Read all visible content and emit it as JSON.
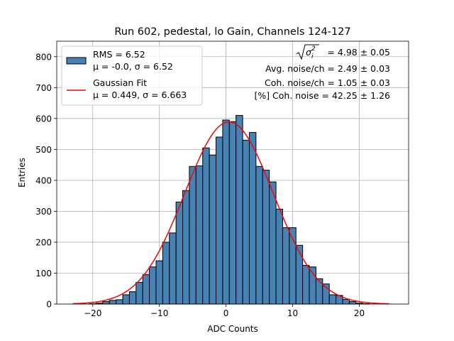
{
  "chart_data": {
    "type": "bar",
    "title": "Run 602, pedestal, lo Gain, Channels 124-127",
    "xlabel": "ADC Counts",
    "ylabel": "Entries",
    "xlim": [
      -25.4,
      27.4
    ],
    "ylim": [
      0,
      850
    ],
    "grid": true,
    "legend_position": "top-left",
    "bin_width": 1,
    "bins": [
      {
        "x": -24,
        "y": 0
      },
      {
        "x": -23,
        "y": 0
      },
      {
        "x": -22,
        "y": 0
      },
      {
        "x": -21,
        "y": 0
      },
      {
        "x": -20,
        "y": 1
      },
      {
        "x": -19,
        "y": 3
      },
      {
        "x": -18,
        "y": 8
      },
      {
        "x": -17,
        "y": 12
      },
      {
        "x": -16,
        "y": 14
      },
      {
        "x": -15,
        "y": 30
      },
      {
        "x": -14,
        "y": 40
      },
      {
        "x": -13,
        "y": 70
      },
      {
        "x": -12,
        "y": 95
      },
      {
        "x": -11,
        "y": 120
      },
      {
        "x": -10,
        "y": 140
      },
      {
        "x": -9,
        "y": 200
      },
      {
        "x": -8,
        "y": 230
      },
      {
        "x": -7,
        "y": 330
      },
      {
        "x": -6,
        "y": 367
      },
      {
        "x": -5,
        "y": 445
      },
      {
        "x": -4,
        "y": 447
      },
      {
        "x": -3,
        "y": 505
      },
      {
        "x": -2,
        "y": 482
      },
      {
        "x": -1,
        "y": 540
      },
      {
        "x": 0,
        "y": 595
      },
      {
        "x": 1,
        "y": 590
      },
      {
        "x": 2,
        "y": 610
      },
      {
        "x": 3,
        "y": 530
      },
      {
        "x": 4,
        "y": 555
      },
      {
        "x": 5,
        "y": 445
      },
      {
        "x": 6,
        "y": 433
      },
      {
        "x": 7,
        "y": 395
      },
      {
        "x": 8,
        "y": 307
      },
      {
        "x": 9,
        "y": 247
      },
      {
        "x": 10,
        "y": 247
      },
      {
        "x": 11,
        "y": 190
      },
      {
        "x": 12,
        "y": 125
      },
      {
        "x": 13,
        "y": 120
      },
      {
        "x": 14,
        "y": 82
      },
      {
        "x": 15,
        "y": 65
      },
      {
        "x": 16,
        "y": 30
      },
      {
        "x": 17,
        "y": 28
      },
      {
        "x": 18,
        "y": 15
      },
      {
        "x": 19,
        "y": 8
      },
      {
        "x": 20,
        "y": 3
      },
      {
        "x": 21,
        "y": 1
      },
      {
        "x": 22,
        "y": 0
      },
      {
        "x": 23,
        "y": 0
      }
    ],
    "fit": {
      "type": "gaussian",
      "amplitude": 589,
      "mu": 0.449,
      "sigma": 6.663,
      "x_range": [
        -23,
        24.5
      ]
    },
    "x_ticks": [
      -20,
      -10,
      0,
      10,
      20
    ],
    "x_tick_labels": [
      "−20",
      "−10",
      "0",
      "10",
      "20"
    ],
    "y_ticks": [
      0,
      100,
      200,
      300,
      400,
      500,
      600,
      700,
      800
    ],
    "y_tick_labels": [
      "0",
      "100",
      "200",
      "300",
      "400",
      "500",
      "600",
      "700",
      "800"
    ],
    "legend": {
      "hist_line1": "RMS = 6.52",
      "hist_line2": "μ = -0.0, σ = 6.52",
      "fit_line1": "Gaussian Fit",
      "fit_line2": "μ = 0.449, σ = 6.663"
    },
    "annotations": {
      "total_noise_label_base": "σ",
      "total_noise_label_sub": "i",
      "total_noise_label_sup": "2",
      "total_noise_value": "= 4.98 ± 0.05",
      "avg_noise": "Avg. noise/ch = 2.49 ± 0.03",
      "coh_noise": "Coh. noise/ch = 1.05 ± 0.03",
      "pct_coh_noise": "[%] Coh. noise = 42.25 ± 1.26"
    },
    "colors": {
      "bar_fill": "#4682b4",
      "bar_edge": "#000000",
      "fit_line": "#ff0000",
      "grid": "#b0b0b0"
    }
  }
}
